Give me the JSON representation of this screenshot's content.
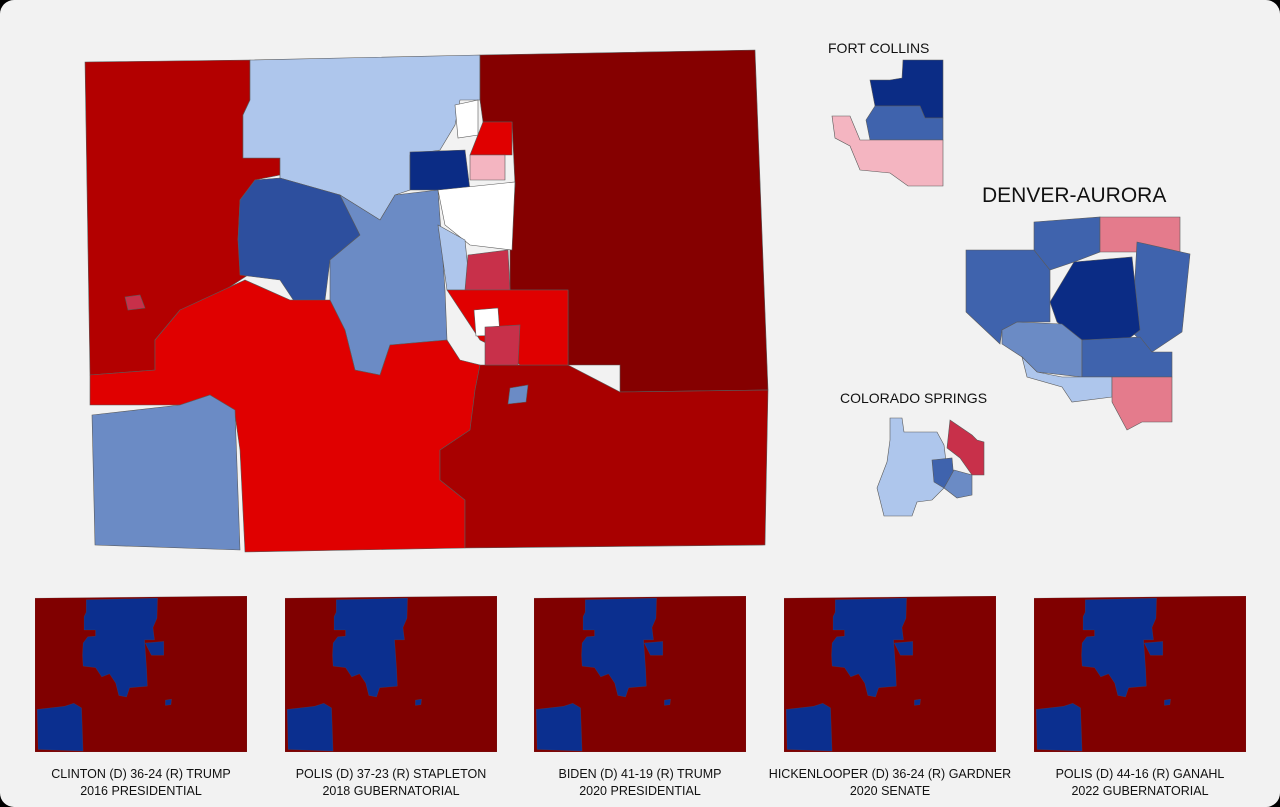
{
  "colors": {
    "safe_r": "#850000",
    "likely_r": "#a80000",
    "lean_r": "#b30000",
    "tilt_r": "#e00000",
    "mod_r": "#c8304a",
    "weak_r": "#f4b5c1",
    "pink_r": "#e47b8c",
    "tossup": "#ffffff",
    "weak_d": "#aec6ec",
    "lean_d": "#6b8bc5",
    "likely_d": "#3f63ad",
    "strong_d": "#2d4f9e",
    "safe_d": "#0b2c85",
    "small_d": "#0b2f8f",
    "small_r": "#800000"
  },
  "insets": {
    "fort_collins": "FORT COLLINS",
    "denver": "DENVER-AURORA",
    "colorado_springs": "COLORADO SPRINGS"
  },
  "elections": [
    {
      "title": "CLINTON (D) 36-24 (R) TRUMP",
      "subtitle": "2016 PRESIDENTIAL"
    },
    {
      "title": "POLIS (D) 37-23 (R) STAPLETON",
      "subtitle": "2018 GUBERNATORIAL"
    },
    {
      "title": "BIDEN (D) 41-19 (R) TRUMP",
      "subtitle": "2020 PRESIDENTIAL"
    },
    {
      "title": "HICKENLOOPER (D) 36-24 (R) GARDNER",
      "subtitle": "2020 SENATE"
    },
    {
      "title": "POLIS (D) 44-16 (R) GANAHL",
      "subtitle": "2022 GUBERNATORIAL"
    }
  ]
}
